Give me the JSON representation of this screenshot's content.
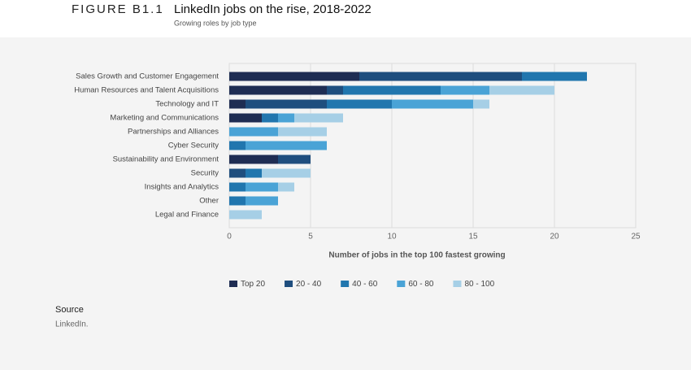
{
  "figure_label": "FIGURE B1.1",
  "source": {
    "heading": "Source",
    "text": "LinkedIn."
  },
  "chart_data": {
    "type": "stacked-barh",
    "title": "LinkedIn jobs on the rise, 2018-2022",
    "subtitle": "Growing roles by job type",
    "xlabel": "Number of jobs in the top 100 fastest growing",
    "categories": [
      "Sales Growth and Customer Engagement",
      "Human Resources and Talent Acquisitions",
      "Technology and IT",
      "Marketing and Communications",
      "Partnerships and Alliances",
      "Cyber Security",
      "Sustainability and Environment",
      "Security",
      "Insights and Analytics",
      "Other",
      "Legal and Finance"
    ],
    "series": [
      {
        "name": "Top 20",
        "color": "#1f2d53",
        "values": [
          8,
          6,
          1,
          2,
          0,
          0,
          3,
          0,
          0,
          0,
          0
        ]
      },
      {
        "name": "20 - 40",
        "color": "#1f4e7e",
        "values": [
          10,
          1,
          5,
          0,
          0,
          0,
          2,
          1,
          0,
          0,
          0
        ]
      },
      {
        "name": "40 - 60",
        "color": "#2176ae",
        "values": [
          4,
          6,
          4,
          1,
          0,
          1,
          0,
          1,
          1,
          1,
          0
        ]
      },
      {
        "name": "60 - 80",
        "color": "#4aa3d6",
        "values": [
          0,
          3,
          5,
          1,
          3,
          5,
          0,
          0,
          2,
          2,
          0
        ]
      },
      {
        "name": "80 - 100",
        "color": "#a6cfe6",
        "values": [
          0,
          4,
          1,
          3,
          3,
          0,
          0,
          3,
          1,
          0,
          2
        ]
      }
    ],
    "xlim": [
      0,
      25
    ],
    "xticks": [
      0,
      5,
      10,
      15,
      20,
      25
    ],
    "grid": true
  }
}
